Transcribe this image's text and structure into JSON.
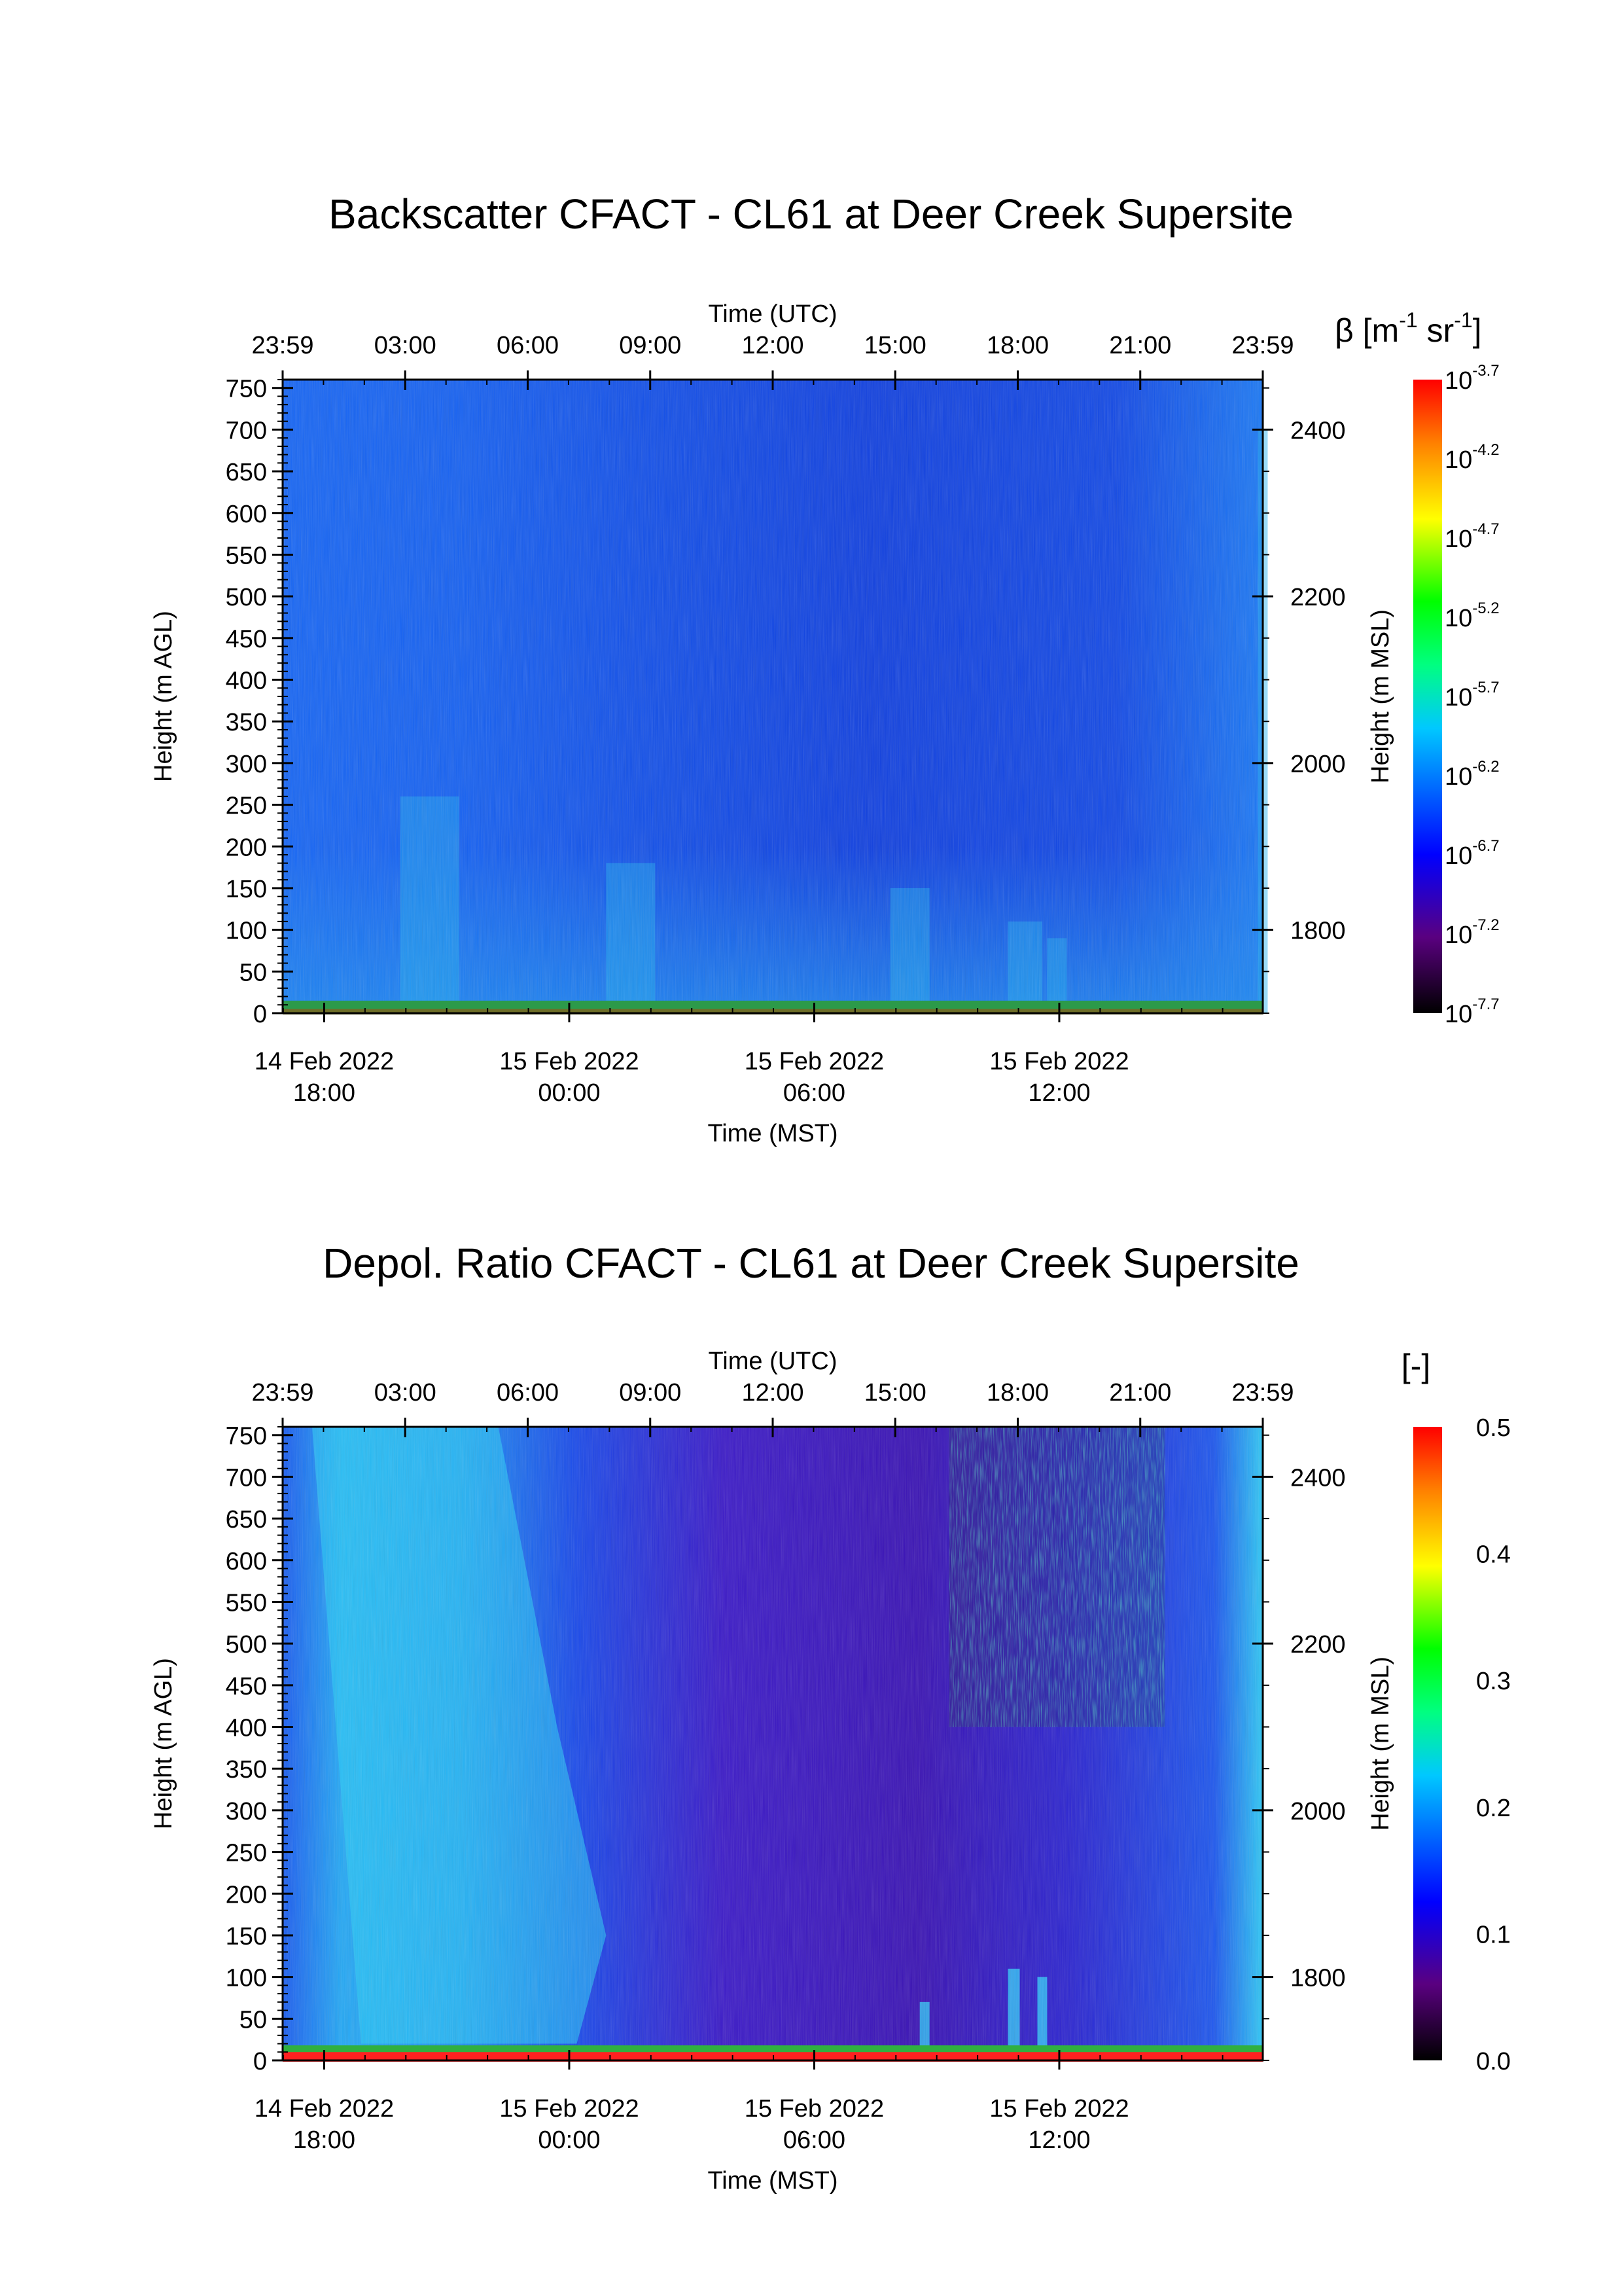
{
  "chart_data": [
    {
      "type": "heatmap",
      "title": "Backscatter CFACT - CL61 at Deer Creek Supersite",
      "top_xlabel": "Time (UTC)",
      "top_xticks": [
        "23:59",
        "03:00",
        "06:00",
        "09:00",
        "12:00",
        "15:00",
        "18:00",
        "21:00",
        "23:59"
      ],
      "bottom_xlabel": "Time (MST)",
      "bottom_xticks": [
        {
          "date": "14 Feb 2022",
          "time": "18:00"
        },
        {
          "date": "15 Feb 2022",
          "time": "00:00"
        },
        {
          "date": "15 Feb 2022",
          "time": "06:00"
        },
        {
          "date": "15 Feb 2022",
          "time": "12:00"
        }
      ],
      "ylabel": "Height (m AGL)",
      "yticks": [
        0,
        50,
        100,
        150,
        200,
        250,
        300,
        350,
        400,
        450,
        500,
        550,
        600,
        650,
        700,
        750
      ],
      "ylim": [
        0,
        760
      ],
      "y2label": "Height (m MSL)",
      "y2ticks": [
        1800,
        2000,
        2200,
        2400
      ],
      "colorbar": {
        "label_base": "β [m",
        "label_exp1": "-1",
        "label_mid": " sr",
        "label_exp2": "-1",
        "label_end": "]",
        "scale": "log",
        "tick_base": "10",
        "tick_exponents": [
          "-3.7",
          "-4.2",
          "-4.7",
          "-5.2",
          "-5.7",
          "-6.2",
          "-6.7",
          "-7.2",
          "-7.7"
        ],
        "range": [
          -7.7,
          -3.7
        ]
      },
      "colormap": [
        "#000000",
        "#5a0080",
        "#0000ff",
        "#00c8ff",
        "#00ff80",
        "#00ff00",
        "#ffff00",
        "#ff8000",
        "#ff0000"
      ]
    },
    {
      "type": "heatmap",
      "title": "Depol. Ratio CFACT - CL61 at Deer Creek Supersite",
      "top_xlabel": "Time (UTC)",
      "top_xticks": [
        "23:59",
        "03:00",
        "06:00",
        "09:00",
        "12:00",
        "15:00",
        "18:00",
        "21:00",
        "23:59"
      ],
      "bottom_xlabel": "Time (MST)",
      "bottom_xticks": [
        {
          "date": "14 Feb 2022",
          "time": "18:00"
        },
        {
          "date": "15 Feb 2022",
          "time": "00:00"
        },
        {
          "date": "15 Feb 2022",
          "time": "06:00"
        },
        {
          "date": "15 Feb 2022",
          "time": "12:00"
        }
      ],
      "ylabel": "Height (m AGL)",
      "yticks": [
        0,
        50,
        100,
        150,
        200,
        250,
        300,
        350,
        400,
        450,
        500,
        550,
        600,
        650,
        700,
        750
      ],
      "ylim": [
        0,
        760
      ],
      "y2label": "Height (m MSL)",
      "y2ticks": [
        1800,
        2000,
        2200,
        2400
      ],
      "colorbar": {
        "label": "[-]",
        "scale": "linear",
        "ticks": [
          "0.5",
          "0.4",
          "0.3",
          "0.2",
          "0.1",
          "0.0"
        ],
        "range": [
          0.0,
          0.5
        ]
      },
      "colormap": [
        "#000000",
        "#5a0080",
        "#0000ff",
        "#00c8ff",
        "#00ff80",
        "#00ff00",
        "#ffff00",
        "#ff8000",
        "#ff0000"
      ]
    }
  ]
}
